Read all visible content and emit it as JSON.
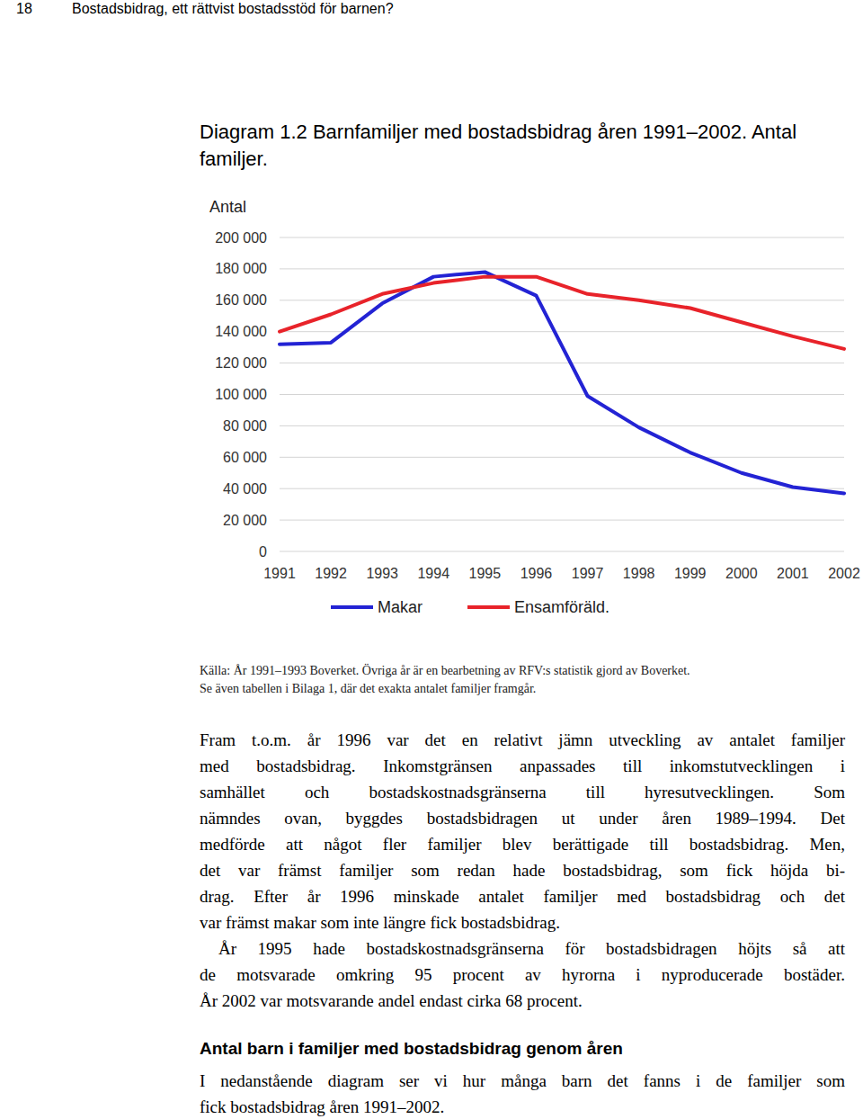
{
  "header": {
    "page_number": "18",
    "title": "Bostadsbidrag, ett rättvist bostadsstöd för barnen?"
  },
  "chart_data": {
    "type": "line",
    "title": "Diagram 1.2 Barnfamiljer med bostadsbidrag åren 1991–2002. Antal familjer.",
    "y_label": "Antal",
    "categories": [
      "1991",
      "1992",
      "1993",
      "1994",
      "1995",
      "1996",
      "1997",
      "1998",
      "1999",
      "2000",
      "2001",
      "2002"
    ],
    "series": [
      {
        "name": "Makar",
        "color": "#2323d4",
        "values": [
          132000,
          133000,
          158000,
          175000,
          178000,
          163000,
          99000,
          79000,
          63000,
          50000,
          41000,
          37000
        ]
      },
      {
        "name": "Ensamföräld.",
        "color": "#e8232a",
        "values": [
          140000,
          151000,
          164000,
          171000,
          175000,
          175000,
          164000,
          160000,
          155000,
          146000,
          137000,
          129000
        ]
      }
    ],
    "ylim": [
      0,
      200000
    ],
    "yticks": [
      0,
      {
        "value": 20000,
        "label": "20 000"
      },
      {
        "value": 40000,
        "label": "40 000"
      },
      {
        "value": 60000,
        "label": "60 000"
      },
      {
        "value": 80000,
        "label": "80 000"
      },
      {
        "value": 100000,
        "label": "100 000"
      },
      {
        "value": 120000,
        "label": "120 000"
      },
      {
        "value": 140000,
        "label": "140 000"
      },
      {
        "value": 160000,
        "label": "160 000"
      },
      {
        "value": 180000,
        "label": "180 000"
      },
      {
        "value": 200000,
        "label": "200 000"
      }
    ],
    "grid": true,
    "legend": "bottom"
  },
  "source": {
    "lines": [
      "Källa: År 1991–1993 Boverket. Övriga år är en bearbetning av RFV:s statistik gjord av Boverket.",
      "Se även tabellen i Bilaga 1, där det exakta antalet familjer framgår."
    ]
  },
  "body": {
    "paragraphs": [
      {
        "lines": [
          "Fram t.o.m. år 1996 var det en relativt jämn utveckling av antalet familjer",
          "med bostadsbidrag. Inkomstgränsen anpassades till inkomstutvecklingen i",
          "samhället och bostadskostnadsgränserna till hyresutvecklingen. Som",
          "nämndes ovan, byggdes bostadsbidragen ut under åren 1989–1994. Det",
          "medförde att något fler familjer blev berättigade till bostadsbidrag. Men,",
          "det var främst familjer som redan hade bostadsbidrag, som fick höjda bi-",
          "drag. Efter år 1996 minskade antalet familjer med bostadsbidrag och det",
          "var främst makar som inte längre fick bostadsbidrag."
        ]
      },
      {
        "lines": [
          "År 1995 hade bostadskostnadsgränserna för bostadsbidragen höjts så att",
          "de motsvarade omkring 95 procent av hyrorna i nyproducerade bostäder.",
          "År 2002 var motsvarande andel endast cirka 68 procent."
        ]
      }
    ]
  },
  "section": {
    "heading": "Antal barn i familjer med bostadsbidrag genom åren",
    "paragraphs": [
      {
        "lines": [
          "I nedanstående diagram ser vi hur många barn det fanns i de familjer som",
          "fick bostadsbidrag åren 1991–2002."
        ]
      }
    ]
  }
}
